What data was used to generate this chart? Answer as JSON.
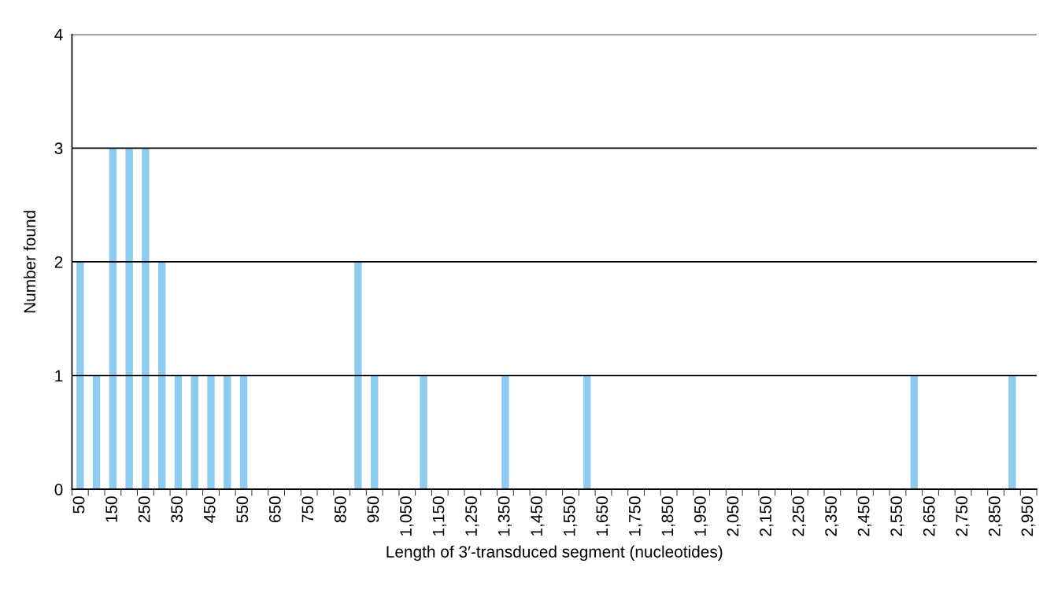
{
  "chart_data": {
    "type": "bar",
    "xlabel": "Length of 3′-transduced segment (nucleotides)",
    "ylabel": "Number found",
    "categories": [
      "50",
      null,
      "150",
      null,
      "250",
      null,
      "350",
      null,
      "450",
      null,
      "550",
      null,
      "650",
      null,
      "750",
      null,
      "850",
      null,
      "950",
      null,
      "1,050",
      null,
      "1,150",
      null,
      "1,250",
      null,
      "1,350",
      null,
      "1,450",
      null,
      "1,550",
      null,
      "1,650",
      null,
      "1,750",
      null,
      "1,850",
      null,
      "1,950",
      null,
      "2,050",
      null,
      "2,150",
      null,
      "2,250",
      null,
      "2,350",
      null,
      "2,450",
      null,
      "2,550",
      null,
      "2,650",
      null,
      "2,750",
      null,
      "2,850",
      null,
      "2,950"
    ],
    "values": [
      2,
      1,
      3,
      3,
      3,
      2,
      1,
      1,
      1,
      1,
      1,
      0,
      0,
      0,
      0,
      0,
      0,
      2,
      1,
      0,
      0,
      1,
      0,
      0,
      0,
      0,
      1,
      0,
      0,
      0,
      0,
      1,
      0,
      0,
      0,
      0,
      0,
      0,
      0,
      0,
      0,
      0,
      0,
      0,
      0,
      0,
      0,
      0,
      0,
      0,
      0,
      1,
      0,
      0,
      0,
      0,
      0,
      1,
      0
    ],
    "color": "#8ecbef",
    "ylim": [
      0,
      4
    ],
    "yticks": [
      0,
      1,
      2,
      3,
      4
    ],
    "grid": "y"
  }
}
